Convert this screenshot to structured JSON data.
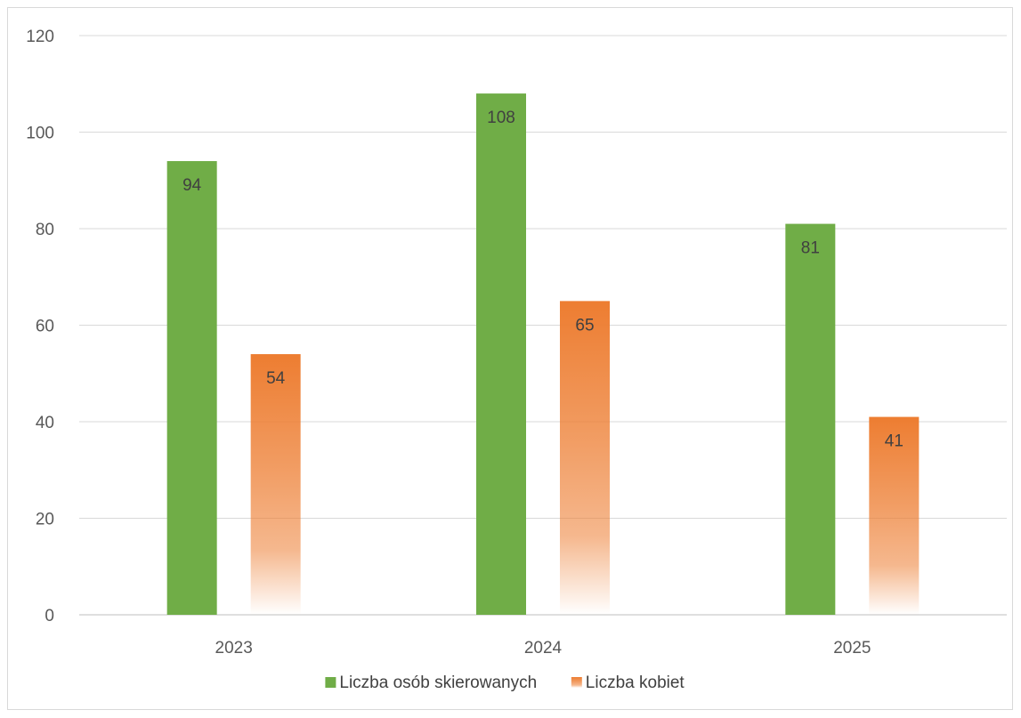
{
  "chart_data": {
    "type": "bar",
    "categories": [
      "2023",
      "2024",
      "2025"
    ],
    "series": [
      {
        "name": "Liczba osób skierowanych",
        "values": [
          94,
          108,
          81
        ],
        "color": "#70ad47"
      },
      {
        "name": "Liczba kobiet",
        "values": [
          54,
          65,
          41
        ],
        "color": "#ed7d31",
        "fill_style": "gradient-to-white-at-base"
      }
    ],
    "ylim": [
      0,
      120
    ],
    "yticks": [
      0,
      20,
      40,
      60,
      80,
      100,
      120
    ],
    "grid": true,
    "legend": "bottom-center",
    "data_labels": "inside-top"
  }
}
